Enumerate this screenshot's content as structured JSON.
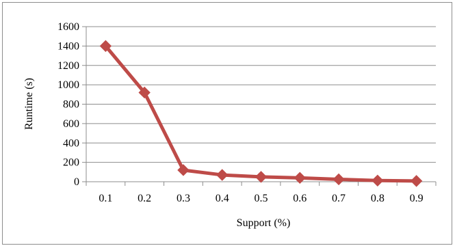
{
  "chart_data": {
    "type": "line",
    "title": "",
    "xlabel": "Support (%)",
    "ylabel": "Runtime (s)",
    "categories": [
      "0.1",
      "0.2",
      "0.3",
      "0.4",
      "0.5",
      "0.6",
      "0.7",
      "0.8",
      "0.9"
    ],
    "yticks": [
      "0",
      "200",
      "400",
      "600",
      "800",
      "1000",
      "1200",
      "1400",
      "1600"
    ],
    "ylim": [
      0,
      1600
    ],
    "grid": true,
    "legend": "none",
    "series": [
      {
        "values": [
          1400,
          920,
          120,
          70,
          50,
          40,
          25,
          12,
          8
        ],
        "color": "#be4b48",
        "marker": "diamond"
      }
    ]
  }
}
